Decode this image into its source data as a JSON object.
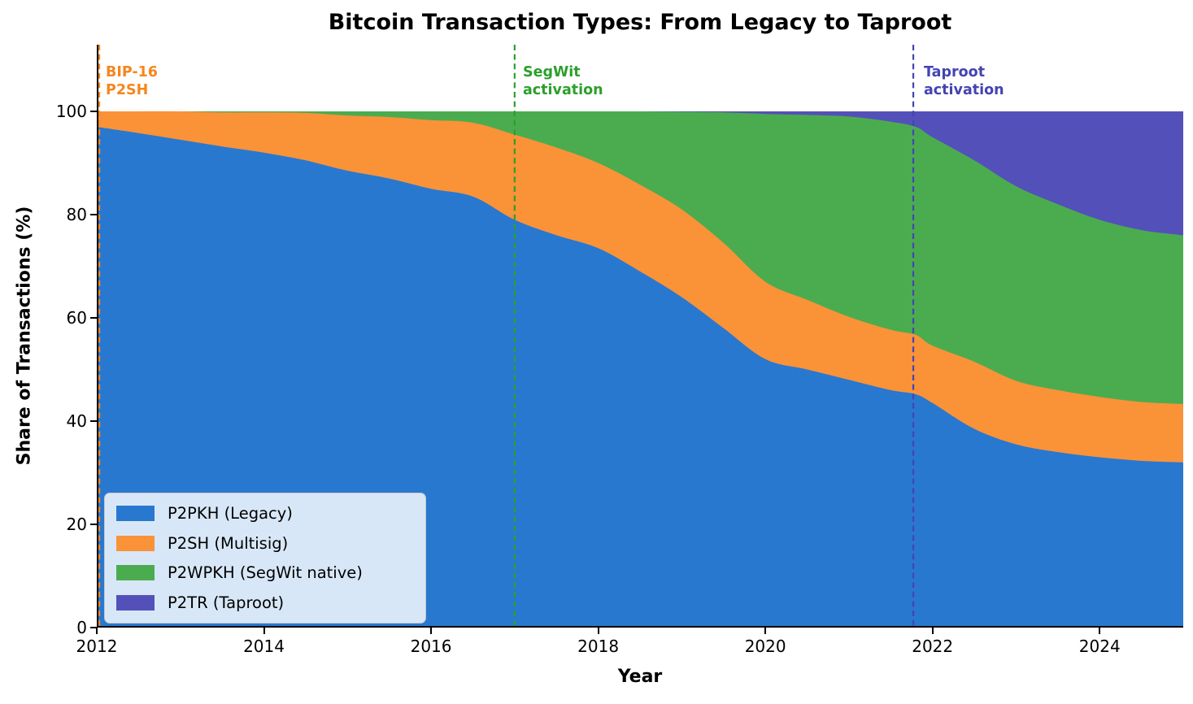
{
  "title": "Bitcoin Transaction Types: From Legacy to Taproot",
  "axes": {
    "x_label": "Year",
    "y_label": "Share of Transactions (%)",
    "x_ticks": [
      2012,
      2014,
      2016,
      2018,
      2020,
      2022,
      2024
    ],
    "y_ticks": [
      0,
      20,
      40,
      60,
      80,
      100
    ],
    "x_range": [
      2012,
      2025
    ],
    "y_range": [
      0,
      113
    ]
  },
  "annotations": [
    {
      "line1": "BIP-16",
      "line2": "P2SH",
      "year": 2012.03,
      "color": "#f5861f"
    },
    {
      "line1": "SegWit",
      "line2": "activation",
      "year": 2017.0,
      "color": "#2ca02c"
    },
    {
      "line1": "Taproot",
      "line2": "activation",
      "year": 2021.77,
      "color": "#4444b3"
    }
  ],
  "chart_data": {
    "type": "area",
    "stacked": true,
    "title": "Bitcoin Transaction Types: From Legacy to Taproot",
    "xlabel": "Year",
    "ylabel": "Share of Transactions (%)",
    "xlim": [
      2012,
      2025
    ],
    "ylim": [
      0,
      113
    ],
    "grid": false,
    "legend_position": "lower left",
    "x": [
      2012,
      2012.5,
      2013,
      2013.5,
      2014,
      2014.5,
      2015,
      2015.5,
      2016,
      2016.5,
      2017,
      2017.5,
      2018,
      2018.5,
      2019,
      2019.5,
      2020,
      2020.5,
      2021,
      2021.5,
      2021.8,
      2022,
      2022.5,
      2023,
      2023.5,
      2024,
      2024.5,
      2025
    ],
    "series": [
      {
        "name": "P2PKH (Legacy)",
        "color": "#2878d0",
        "values": [
          97,
          95.8,
          94.5,
          93.2,
          92,
          90.5,
          88.5,
          87,
          85,
          83.5,
          79,
          76,
          73.5,
          69,
          64,
          58,
          52,
          50,
          48,
          46,
          45.2,
          43.5,
          38.5,
          35.5,
          34,
          33,
          32.3,
          32
        ]
      },
      {
        "name": "P2SH (Multisig)",
        "color": "#fa9238",
        "values": [
          3,
          4.2,
          5.5,
          6.6,
          7.8,
          9.2,
          10.7,
          11.9,
          13.3,
          14.3,
          16.5,
          17,
          16.5,
          16.8,
          17,
          16.5,
          15,
          13.5,
          12.2,
          11.7,
          11.5,
          11.1,
          13,
          12.3,
          12,
          11.7,
          11.4,
          11.3
        ]
      },
      {
        "name": "P2WPKH (SegWit native)",
        "color": "#4bac4f",
        "values": [
          0,
          0,
          0,
          0.2,
          0.2,
          0.3,
          0.8,
          1.1,
          1.7,
          2.2,
          4.5,
          7,
          10,
          14.2,
          18.9,
          25.3,
          32.5,
          35.8,
          38.8,
          40.3,
          40.3,
          40.4,
          39,
          37.7,
          36,
          34.3,
          33.3,
          32.7
        ]
      },
      {
        "name": "P2TR (Taproot)",
        "color": "#5450ba",
        "values": [
          0,
          0,
          0,
          0,
          0,
          0,
          0,
          0,
          0,
          0,
          0,
          0,
          0,
          0,
          0.1,
          0.2,
          0.5,
          0.7,
          1,
          2,
          3,
          5,
          9.5,
          14.5,
          18,
          21,
          23,
          24
        ]
      }
    ]
  }
}
